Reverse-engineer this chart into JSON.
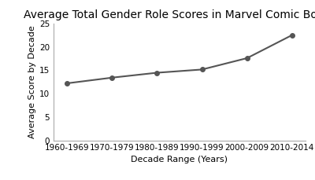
{
  "title": "Average Total Gender Role Scores in Marvel Comic Books",
  "xlabel": "Decade Range (Years)",
  "ylabel": "Average Score by Decade",
  "categories": [
    "1960-1969",
    "1970-1979",
    "1980-1989",
    "1990-1999",
    "2000-2009",
    "2010-2014"
  ],
  "values": [
    12.2,
    13.41,
    14.46,
    15.15,
    17.58,
    22.5
  ],
  "ylim": [
    0,
    25
  ],
  "yticks": [
    0,
    5,
    10,
    15,
    20,
    25
  ],
  "line_color": "#555555",
  "marker": "o",
  "marker_color": "#555555",
  "marker_size": 4,
  "line_width": 1.5,
  "background_color": "#ffffff",
  "title_fontsize": 10,
  "axis_label_fontsize": 8,
  "tick_fontsize": 7.5,
  "spine_color": "#aaaaaa"
}
